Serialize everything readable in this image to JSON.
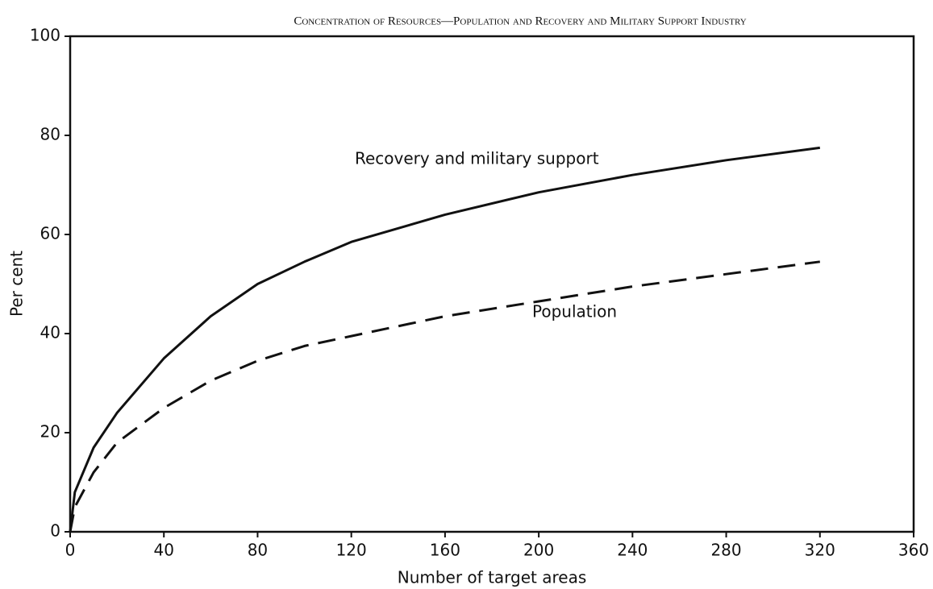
{
  "chart_data": {
    "type": "line",
    "title": "Concentration of Resources—Population and Recovery and Military Support Industry",
    "xlabel": "Number of target areas",
    "ylabel": "Per cent",
    "series": [
      {
        "name": "Recovery and military support",
        "color": "#111111",
        "style": "solid",
        "x": [
          0,
          2,
          10,
          20,
          40,
          60,
          80,
          100,
          120,
          160,
          200,
          240,
          280,
          320
        ],
        "values": [
          0,
          8,
          17,
          24,
          35,
          43.5,
          50,
          54.5,
          58.5,
          64,
          68.5,
          72,
          75,
          77.5
        ]
      },
      {
        "name": "Population",
        "color": "#111111",
        "style": "dashed",
        "x": [
          0,
          2,
          10,
          20,
          40,
          60,
          80,
          100,
          120,
          160,
          200,
          240,
          280,
          320
        ],
        "values": [
          0,
          5,
          12,
          18,
          25,
          30.5,
          34.5,
          37.5,
          39.5,
          43.5,
          46.5,
          49.5,
          52,
          54.5
        ]
      }
    ],
    "xlim": [
      0,
      360
    ],
    "xticks": [
      0,
      40,
      80,
      120,
      160,
      200,
      240,
      280,
      320,
      360
    ],
    "ylim": [
      0,
      100
    ],
    "yticks": [
      0,
      20,
      40,
      60,
      80,
      100
    ],
    "grid": false
  }
}
